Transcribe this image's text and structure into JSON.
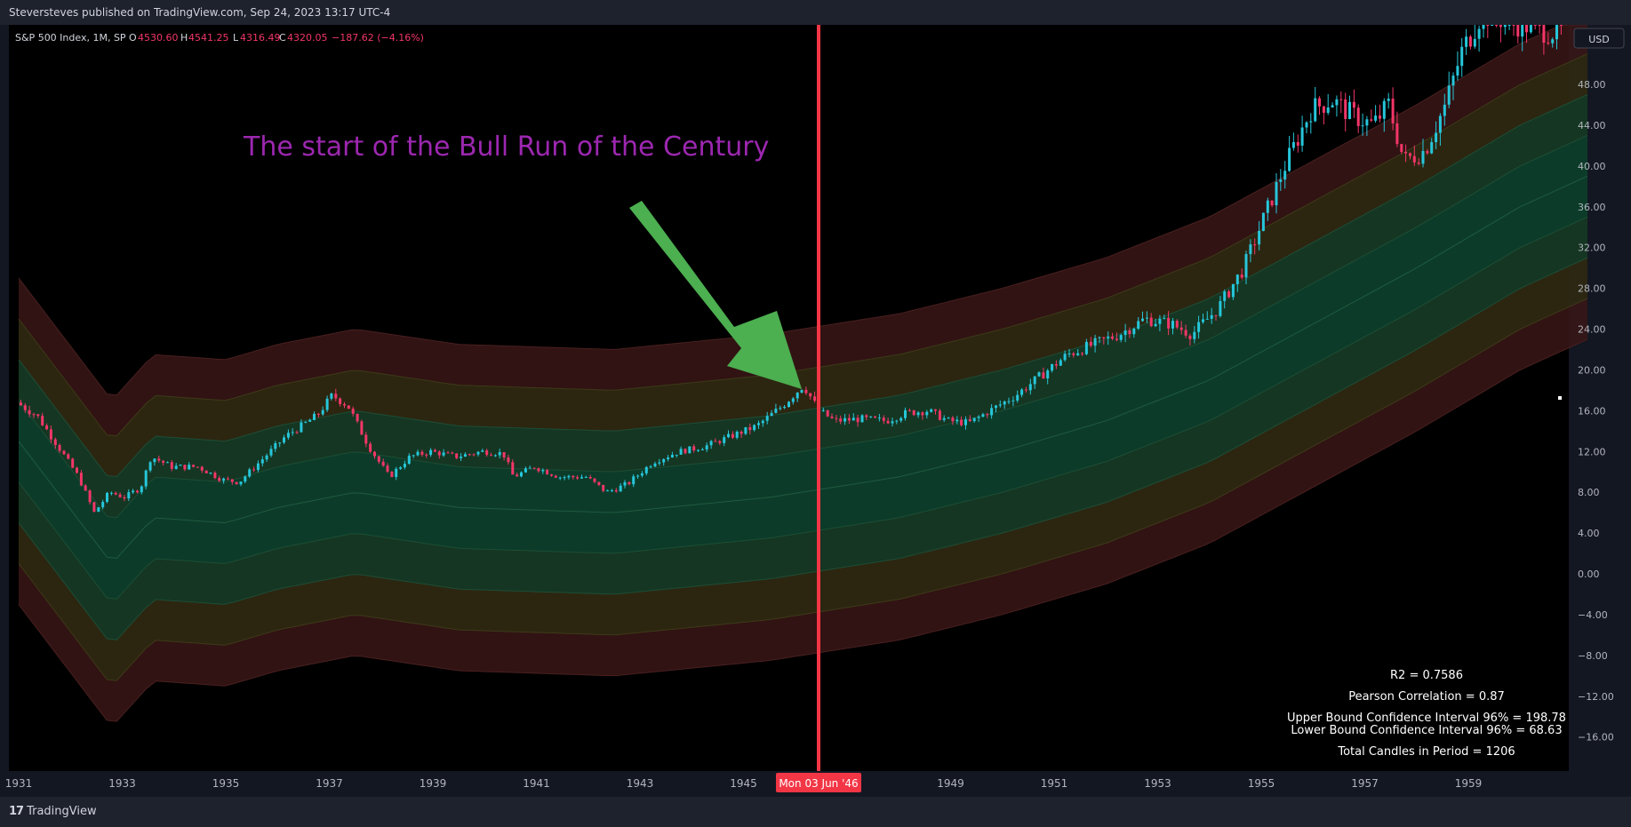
{
  "header": {
    "publisher_line": "Steversteves published on TradingView.com, Sep 24, 2023 13:17 UTC-4"
  },
  "legend": {
    "symbol": "S&P 500 Index, 1M, SP",
    "o_label": "O",
    "o_value": "4530.60",
    "h_label": "H",
    "h_value": "4541.25",
    "l_label": "L",
    "l_value": "4316.49",
    "c_label": "C",
    "c_value": "4320.05",
    "change": "−187.62 (−4.16%)"
  },
  "currency_button": "USD",
  "annotation": {
    "text": "The start of the Bull Run of the Century",
    "color": "#9c27b0",
    "arrow_color": "#4caf50"
  },
  "crosshair": {
    "date_label": "Mon 03 Jun '46",
    "color": "#f23645"
  },
  "stats": {
    "r2": "R2 = 0.7586",
    "pearson": "Pearson Correlation = 0.87",
    "upper": "Upper Bound Confidence Interval 96% = 198.78",
    "lower": "Lower Bound Confidence Interval 96% = 68.63",
    "total": "Total Candles in Period = 1206"
  },
  "footer": {
    "brand": "TradingView",
    "logo_glyph": "17"
  },
  "colors": {
    "up": "#26c6da",
    "down": "#f23668",
    "band_inner": "#0b3d2a",
    "band_mid": "#2b2a12",
    "band_outer": "#3a1616"
  },
  "chart_data": {
    "type": "candlestick",
    "title": "S&P 500 Index, 1M, SP",
    "xlabel": "",
    "ylabel": "",
    "x_ticks": [
      "1931",
      "1933",
      "1935",
      "1937",
      "1939",
      "1941",
      "1943",
      "1945",
      "1949",
      "1951",
      "1953",
      "1955",
      "1957",
      "1959"
    ],
    "y_ticks": [
      "48.00",
      "44.00",
      "40.00",
      "36.00",
      "32.00",
      "28.00",
      "24.00",
      "20.00",
      "16.00",
      "12.00",
      "8.00",
      "4.00",
      "0.00",
      "−4.00",
      "−8.00",
      "−12.00",
      "−16.00"
    ],
    "y_range": [
      -19.5,
      52
    ],
    "x_range": [
      1931,
      1961.3
    ],
    "series": [
      {
        "name": "price_path",
        "points": [
          [
            1931.0,
            16.8
          ],
          [
            1931.4,
            15.5
          ],
          [
            1931.8,
            12.5
          ],
          [
            1932.2,
            9.5
          ],
          [
            1932.5,
            6.0
          ],
          [
            1932.8,
            8.0
          ],
          [
            1933.1,
            7.5
          ],
          [
            1933.4,
            8.5
          ],
          [
            1933.6,
            11.5
          ],
          [
            1934.0,
            10.5
          ],
          [
            1934.5,
            10.5
          ],
          [
            1935.0,
            9.2
          ],
          [
            1935.3,
            9.0
          ],
          [
            1935.7,
            11.0
          ],
          [
            1936.2,
            13.5
          ],
          [
            1936.8,
            15.5
          ],
          [
            1937.1,
            17.5
          ],
          [
            1937.4,
            16.5
          ],
          [
            1937.8,
            12.5
          ],
          [
            1938.2,
            9.5
          ],
          [
            1938.6,
            11.5
          ],
          [
            1939.0,
            12.0
          ],
          [
            1939.5,
            11.5
          ],
          [
            1940.0,
            12.0
          ],
          [
            1940.4,
            11.8
          ],
          [
            1940.6,
            9.5
          ],
          [
            1941.0,
            10.5
          ],
          [
            1941.5,
            9.5
          ],
          [
            1942.0,
            9.5
          ],
          [
            1942.4,
            8.0
          ],
          [
            1942.8,
            8.8
          ],
          [
            1943.3,
            11.0
          ],
          [
            1943.8,
            12.0
          ],
          [
            1944.3,
            12.5
          ],
          [
            1944.8,
            13.5
          ],
          [
            1945.3,
            14.5
          ],
          [
            1945.8,
            16.5
          ],
          [
            1946.2,
            18.5
          ],
          [
            1946.5,
            16.0
          ],
          [
            1946.8,
            15.0
          ],
          [
            1947.3,
            15.2
          ],
          [
            1947.8,
            15.0
          ],
          [
            1948.2,
            15.8
          ],
          [
            1948.6,
            16.0
          ],
          [
            1949.0,
            15.0
          ],
          [
            1949.4,
            14.8
          ],
          [
            1949.8,
            16.0
          ],
          [
            1950.3,
            17.5
          ],
          [
            1950.8,
            19.5
          ],
          [
            1951.3,
            21.5
          ],
          [
            1951.8,
            22.5
          ],
          [
            1952.3,
            23.5
          ],
          [
            1952.8,
            25.0
          ],
          [
            1953.3,
            24.5
          ],
          [
            1953.7,
            23.5
          ],
          [
            1954.2,
            26.0
          ],
          [
            1954.7,
            30.0
          ],
          [
            1955.1,
            35.0
          ],
          [
            1955.5,
            40.0
          ],
          [
            1956.0,
            45.5
          ],
          [
            1956.4,
            46.5
          ],
          [
            1956.8,
            45.0
          ],
          [
            1957.2,
            44.0
          ],
          [
            1957.5,
            46.0
          ],
          [
            1957.8,
            40.5
          ],
          [
            1958.2,
            41.5
          ],
          [
            1958.6,
            46.0
          ],
          [
            1958.9,
            51.0
          ],
          [
            1959.3,
            55.0
          ],
          [
            1960.0,
            54.0
          ],
          [
            1960.8,
            53.0
          ],
          [
            1961.3,
            55.0
          ]
        ]
      },
      {
        "name": "band_center",
        "points": [
          [
            1931.0,
            13.0
          ],
          [
            1932.8,
            1.0
          ],
          [
            1933.6,
            5.5
          ],
          [
            1935.0,
            5.0
          ],
          [
            1936.0,
            6.5
          ],
          [
            1937.5,
            8.0
          ],
          [
            1939.5,
            6.5
          ],
          [
            1942.5,
            6.0
          ],
          [
            1945.5,
            7.5
          ],
          [
            1948.0,
            9.5
          ],
          [
            1950.0,
            12.0
          ],
          [
            1952.0,
            15.0
          ],
          [
            1954.0,
            19.0
          ],
          [
            1956.0,
            24.5
          ],
          [
            1958.0,
            30.0
          ],
          [
            1960.0,
            36.0
          ],
          [
            1961.3,
            39.0
          ]
        ]
      },
      {
        "name": "band_half_widths",
        "points": [
          [
            1,
            4
          ],
          [
            2,
            8
          ],
          [
            3,
            12
          ],
          [
            4,
            16
          ]
        ]
      }
    ],
    "marked_date": 1946.45
  }
}
